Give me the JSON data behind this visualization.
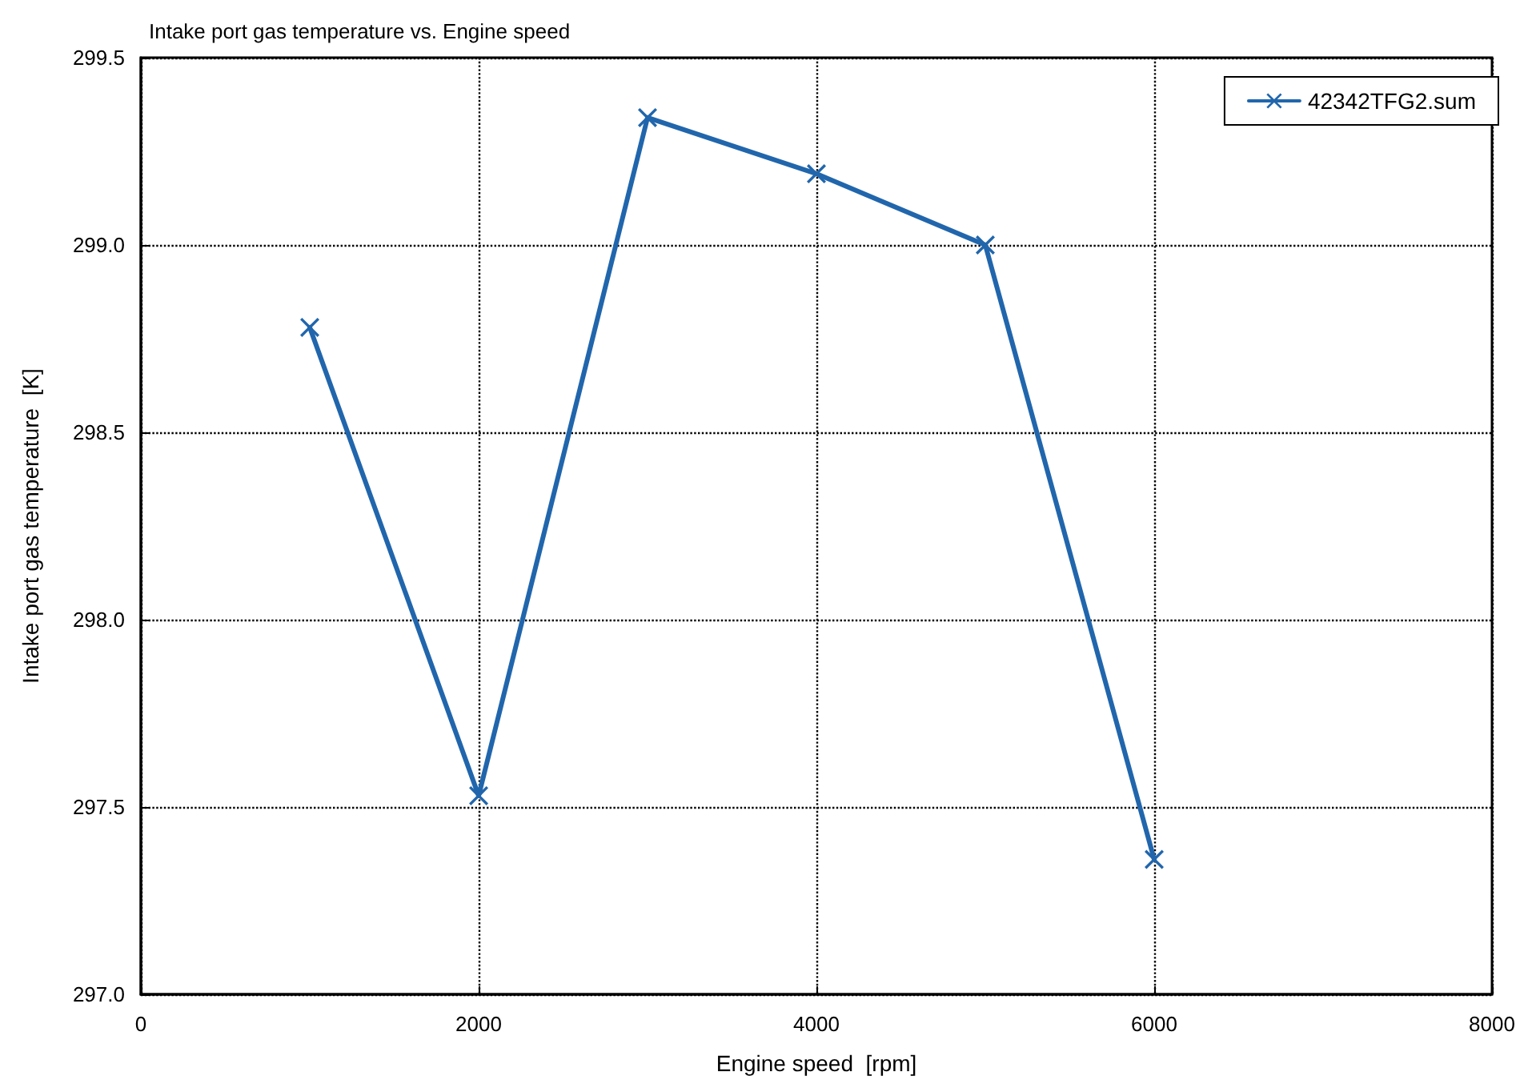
{
  "chart_data": {
    "type": "line",
    "title": "Intake port gas temperature vs. Engine speed",
    "xlabel": "Engine speed  [rpm]",
    "ylabel": "Intake port gas temperature  [K]",
    "x": [
      1000,
      2000,
      3000,
      4000,
      5000,
      6000
    ],
    "series": [
      {
        "name": "42342TFG2.sum",
        "color": "#2166ac",
        "values": [
          298.78,
          297.53,
          299.34,
          299.19,
          299.0,
          297.36
        ]
      }
    ],
    "xlim": [
      0,
      8000
    ],
    "xticks": [
      0,
      2000,
      4000,
      6000,
      8000
    ],
    "ylim": [
      297.0,
      299.5
    ],
    "yticks": [
      {
        "value": 297.0,
        "label": "297.0"
      },
      {
        "value": 297.5,
        "label": "297.5"
      },
      {
        "value": 298.0,
        "label": "298.0"
      },
      {
        "value": 298.5,
        "label": "298.5"
      },
      {
        "value": 299.0,
        "label": "299.0"
      },
      {
        "value": 299.5,
        "label": "299.5"
      }
    ],
    "grid": true,
    "legend": "top right",
    "marker": "cross",
    "line_style": "solid"
  }
}
